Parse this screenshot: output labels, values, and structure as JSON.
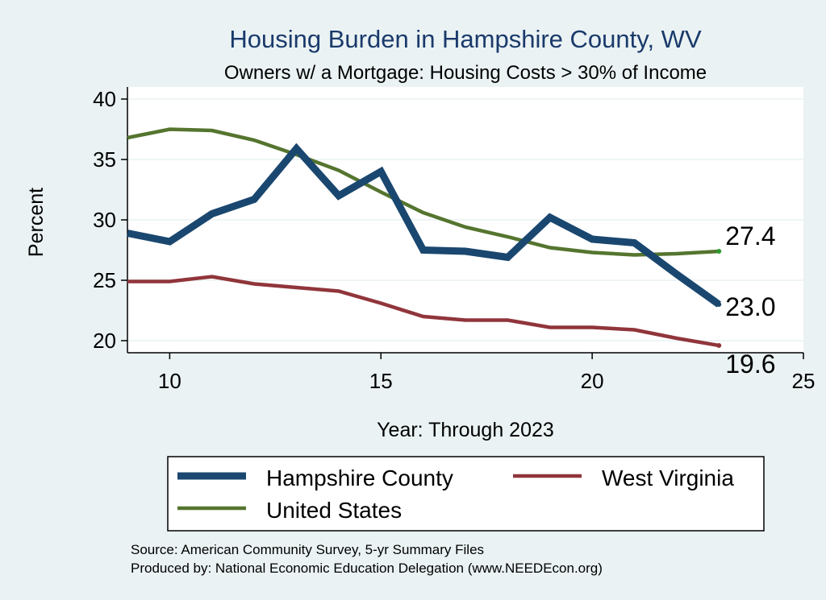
{
  "chart_data": {
    "type": "line",
    "title": "Housing Burden in Hampshire County, WV",
    "subtitle": "Owners w/ a Mortgage: Housing Costs > 30% of Income",
    "xlabel": "Year: Through 2023",
    "ylabel": "Percent",
    "xlim": [
      9,
      25
    ],
    "ylim": [
      19,
      41
    ],
    "x_ticks": [
      10,
      15,
      20,
      25
    ],
    "y_ticks": [
      20,
      25,
      30,
      35,
      40
    ],
    "grid": true,
    "x": [
      9,
      10,
      11,
      12,
      13,
      14,
      15,
      16,
      17,
      18,
      19,
      20,
      21,
      22,
      23
    ],
    "series": [
      {
        "name": "Hampshire County",
        "color": "#1a476f",
        "values": [
          28.9,
          28.2,
          30.5,
          31.7,
          35.9,
          32.0,
          34.0,
          27.5,
          27.4,
          26.9,
          30.2,
          28.4,
          28.1,
          25.5,
          23.0
        ],
        "end_label": "23.0"
      },
      {
        "name": "West Virginia",
        "color": "#90353b",
        "values": [
          24.9,
          24.9,
          25.3,
          24.7,
          24.4,
          24.1,
          23.1,
          22.0,
          21.7,
          21.7,
          21.1,
          21.1,
          20.9,
          20.2,
          19.6
        ],
        "end_label": "19.6"
      },
      {
        "name": "United States",
        "color": "#55752f",
        "values": [
          36.8,
          37.5,
          37.4,
          36.6,
          35.4,
          34.1,
          32.3,
          30.6,
          29.4,
          28.6,
          27.7,
          27.3,
          27.1,
          27.2,
          27.4
        ],
        "end_label": "27.4"
      }
    ],
    "legend": {
      "position": "bottom",
      "entries": [
        "Hampshire County",
        "West Virginia",
        "United States"
      ]
    },
    "notes": [
      "Source: American Community Survey, 5-yr Summary Files",
      "Produced by: National Economic Education Delegation (www.NEEDEcon.org)"
    ],
    "colors": {
      "title": "#1a3a6b",
      "background": "#eaf2f3",
      "plot_background": "#ffffff",
      "grid": "#eaf2f3"
    }
  }
}
